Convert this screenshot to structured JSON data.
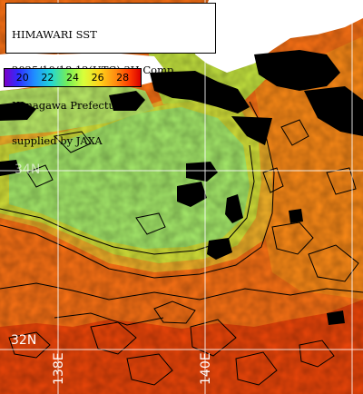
{
  "header": {
    "line1": "HIMAWARI SST",
    "line2": "2025/10/18 12(UTC) 3H Comp.",
    "line3": "Kanagawa Prefecture",
    "line4": "supplied by JAXA"
  },
  "colorbar": {
    "ticks": [
      "20",
      "22",
      "24",
      "26",
      "28"
    ],
    "colors": [
      "#7a00c8",
      "#2f2dff",
      "#1f8fff",
      "#22d6d6",
      "#74ee58",
      "#d8ff3a",
      "#ffd21a",
      "#ff8a10",
      "#ff3b00",
      "#d80000"
    ]
  },
  "grid_labels": {
    "lat_32": "32N",
    "lat_34": "34N",
    "lon_138": "138E",
    "lon_140": "140E"
  },
  "map_colors": {
    "land": "#ffffff",
    "cloud": "#000000",
    "cool_water": "#a6f06a",
    "mid_water": "#e8d23a",
    "warm_water": "#ff7a10",
    "hot_water": "#f24a00",
    "contour": "#000000",
    "gridline": "#ffffff"
  }
}
